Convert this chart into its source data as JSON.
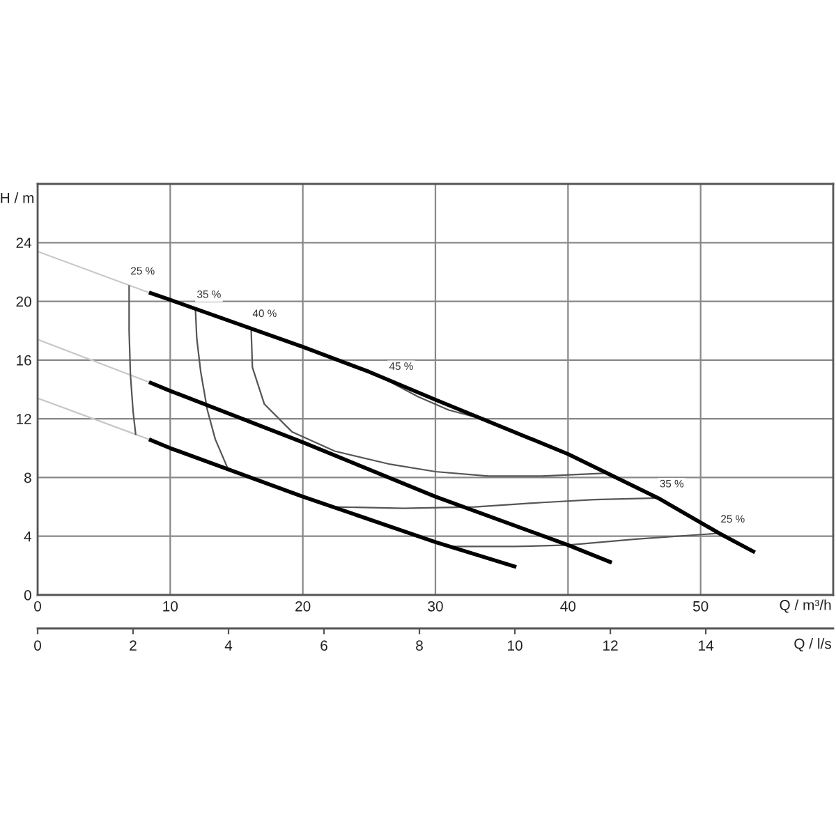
{
  "chart_data": {
    "type": "line",
    "xlabel": "Q / m³/h",
    "ylabel": "H / m",
    "x2label": "Q / l/s",
    "xlim": [
      0,
      60
    ],
    "xticks": [
      0,
      10,
      20,
      30,
      40,
      50
    ],
    "ylim": [
      0,
      28
    ],
    "yticks": [
      0,
      4,
      8,
      12,
      16,
      20,
      24
    ],
    "x2lim": [
      0,
      16.67
    ],
    "x2ticks": [
      0,
      2,
      4,
      6,
      8,
      10,
      12,
      14
    ],
    "grid": true,
    "series": [
      {
        "color": "#c8c8c8",
        "x": [
          0,
          8.4
        ],
        "values": [
          23.4,
          20.6
        ]
      },
      {
        "color": "#c8c8c8",
        "x": [
          0,
          8.4
        ],
        "values": [
          17.4,
          14.5
        ]
      },
      {
        "color": "#c8c8c8",
        "x": [
          0,
          8.4
        ],
        "values": [
          13.4,
          10.6
        ]
      },
      {
        "name": "25 %",
        "color": "#555555",
        "x": [
          6.9,
          6.9,
          7.0,
          7.2,
          7.4
        ],
        "values": [
          21.1,
          18,
          15,
          12.5,
          10.9
        ]
      },
      {
        "name": "35 %",
        "color": "#555555",
        "x": [
          11.9,
          12.0,
          12.3,
          12.8,
          13.4,
          14.3
        ],
        "values": [
          19.5,
          17.5,
          15.2,
          12.6,
          10.6,
          8.7
        ]
      },
      {
        "name": "40 %",
        "color": "#555555",
        "x": [
          16.1,
          16.2,
          17.1,
          19.2,
          22.4,
          26.6,
          30,
          34,
          38,
          43.0
        ],
        "values": [
          18.2,
          15.5,
          13.0,
          11.1,
          9.8,
          8.9,
          8.4,
          8.1,
          8.1,
          8.3
        ]
      },
      {
        "name": "45 %",
        "color": "#555555",
        "x": [
          26.4,
          28.7,
          31,
          33.9
        ],
        "values": [
          14.6,
          13.5,
          12.6,
          11.9
        ]
      },
      {
        "name": "35 %",
        "color": "#555555",
        "x": [
          46.8,
          42,
          38.1,
          33,
          27.6,
          22.2
        ],
        "values": [
          6.6,
          6.5,
          6.3,
          6.0,
          5.9,
          6.0
        ]
      },
      {
        "name": "25 %",
        "color": "#555555",
        "x": [
          51.4,
          45.1,
          40,
          36,
          31.3
        ],
        "values": [
          4.2,
          3.8,
          3.4,
          3.3,
          3.3
        ]
      },
      {
        "color": "#000000",
        "x": [
          8.4,
          10,
          20,
          25,
          30,
          40,
          46.8,
          51.4,
          54.1
        ],
        "values": [
          20.6,
          20.1,
          16.9,
          15.2,
          13.3,
          9.6,
          6.6,
          4.2,
          2.9
        ]
      },
      {
        "color": "#000000",
        "x": [
          8.4,
          10,
          20,
          30,
          40,
          43.3
        ],
        "values": [
          14.5,
          13.9,
          10.4,
          6.7,
          3.4,
          2.2
        ]
      },
      {
        "color": "#000000",
        "x": [
          8.4,
          10,
          20,
          30,
          36.1
        ],
        "values": [
          10.6,
          10.0,
          6.7,
          3.6,
          1.9
        ]
      }
    ]
  }
}
